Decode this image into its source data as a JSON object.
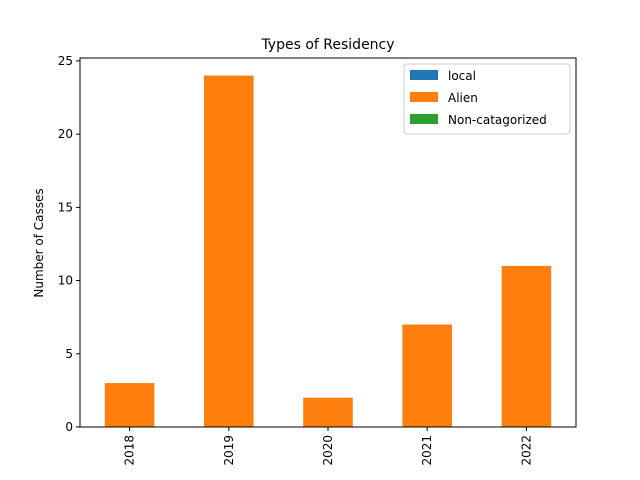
{
  "chart_data": {
    "type": "bar",
    "stacked": true,
    "title": "Types of Residency",
    "xlabel": "",
    "ylabel": "Number of Casses",
    "categories": [
      "2018",
      "2019",
      "2020",
      "2021",
      "2022"
    ],
    "series": [
      {
        "name": "local",
        "color": "#1f77b4",
        "values": [
          0,
          0,
          0,
          0,
          0
        ]
      },
      {
        "name": "Alien",
        "color": "#ff7f0e",
        "values": [
          3,
          24,
          2,
          7,
          11
        ]
      },
      {
        "name": "Non-catagorized",
        "color": "#2ca02c",
        "values": [
          0,
          0,
          0,
          0,
          0
        ]
      }
    ],
    "ylim": [
      0,
      25.2
    ],
    "yticks": [
      0,
      5,
      10,
      15,
      20,
      25
    ],
    "grid": false,
    "legend_position": "top-right",
    "xtick_rotation": 90
  }
}
